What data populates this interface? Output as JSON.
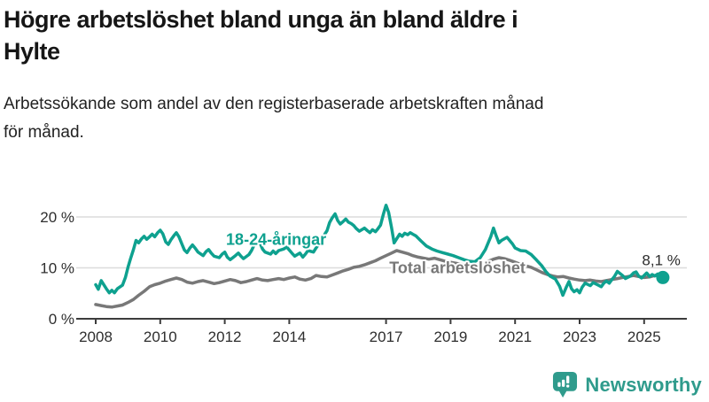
{
  "header": {
    "title": "Högre arbetslöshet bland unga än bland äldre i\nHylte",
    "subtitle": "Arbetssökande som andel av den registerbaserade arbetskraften månad\nför månad."
  },
  "chart_data": {
    "type": "line",
    "title": "Högre arbetslöshet bland unga än bland äldre i Hylte",
    "subtitle": "Arbetssökande som andel av den registerbaserade arbetskraften månad för månad.",
    "unit": "%",
    "grid": "horizontal",
    "ylim": [
      0,
      24
    ],
    "xlim": [
      2008,
      2025.7
    ],
    "axis_color": "#3c3c3c",
    "grid_color": "#dcdcdc",
    "y_ticks": [
      {
        "value": 0,
        "label": "0 %"
      },
      {
        "value": 10,
        "label": "10 %"
      },
      {
        "value": 20,
        "label": "20 %"
      }
    ],
    "x_ticks": [
      "2008",
      "2010",
      "2012",
      "2014",
      "2017",
      "2019",
      "2021",
      "2023",
      "2025"
    ],
    "annotation": {
      "label": "8,1 %",
      "x": 2025.58,
      "y": 8.1,
      "series": "18-24-åringar"
    },
    "series": [
      {
        "name": "18-24-åringar",
        "color": "#0ea18f",
        "label_at": [
          2012.04,
          14.5
        ],
        "points": [
          [
            2008.0,
            6.7
          ],
          [
            2008.08,
            5.8
          ],
          [
            2008.17,
            7.5
          ],
          [
            2008.33,
            5.9
          ],
          [
            2008.42,
            5.1
          ],
          [
            2008.5,
            5.6
          ],
          [
            2008.58,
            5.1
          ],
          [
            2008.67,
            5.9
          ],
          [
            2008.83,
            6.6
          ],
          [
            2008.92,
            8.1
          ],
          [
            2009.0,
            10.1
          ],
          [
            2009.08,
            11.8
          ],
          [
            2009.17,
            13.6
          ],
          [
            2009.25,
            15.4
          ],
          [
            2009.33,
            14.9
          ],
          [
            2009.42,
            15.7
          ],
          [
            2009.5,
            16.2
          ],
          [
            2009.58,
            15.6
          ],
          [
            2009.67,
            16.1
          ],
          [
            2009.75,
            16.6
          ],
          [
            2009.83,
            16.1
          ],
          [
            2009.92,
            16.9
          ],
          [
            2010.0,
            17.4
          ],
          [
            2010.08,
            16.7
          ],
          [
            2010.17,
            15.1
          ],
          [
            2010.25,
            14.6
          ],
          [
            2010.33,
            15.5
          ],
          [
            2010.42,
            16.3
          ],
          [
            2010.5,
            16.9
          ],
          [
            2010.58,
            16.1
          ],
          [
            2010.67,
            14.7
          ],
          [
            2010.75,
            13.5
          ],
          [
            2010.83,
            13.0
          ],
          [
            2010.92,
            13.9
          ],
          [
            2011.0,
            14.5
          ],
          [
            2011.08,
            13.9
          ],
          [
            2011.17,
            13.1
          ],
          [
            2011.33,
            12.4
          ],
          [
            2011.42,
            13.2
          ],
          [
            2011.5,
            13.6
          ],
          [
            2011.58,
            12.9
          ],
          [
            2011.67,
            12.3
          ],
          [
            2011.83,
            12.0
          ],
          [
            2011.92,
            12.7
          ],
          [
            2012.0,
            13.1
          ],
          [
            2012.08,
            12.1
          ],
          [
            2012.17,
            11.6
          ],
          [
            2012.33,
            12.4
          ],
          [
            2012.42,
            12.9
          ],
          [
            2012.5,
            12.3
          ],
          [
            2012.58,
            11.8
          ],
          [
            2012.75,
            12.6
          ],
          [
            2012.83,
            13.4
          ],
          [
            2012.92,
            14.6
          ],
          [
            2013.0,
            16.0
          ],
          [
            2013.08,
            15.1
          ],
          [
            2013.17,
            13.7
          ],
          [
            2013.25,
            13.1
          ],
          [
            2013.42,
            12.7
          ],
          [
            2013.5,
            13.3
          ],
          [
            2013.58,
            12.8
          ],
          [
            2013.67,
            13.4
          ],
          [
            2013.83,
            13.7
          ],
          [
            2013.92,
            14.1
          ],
          [
            2014.0,
            13.5
          ],
          [
            2014.08,
            12.9
          ],
          [
            2014.17,
            12.3
          ],
          [
            2014.33,
            12.9
          ],
          [
            2014.42,
            12.1
          ],
          [
            2014.5,
            12.7
          ],
          [
            2014.58,
            13.4
          ],
          [
            2014.75,
            13.1
          ],
          [
            2014.83,
            13.9
          ],
          [
            2014.92,
            14.7
          ],
          [
            2015.0,
            15.5
          ],
          [
            2015.08,
            16.4
          ],
          [
            2015.17,
            17.3
          ],
          [
            2015.25,
            18.9
          ],
          [
            2015.33,
            19.8
          ],
          [
            2015.42,
            20.6
          ],
          [
            2015.5,
            19.3
          ],
          [
            2015.58,
            18.6
          ],
          [
            2015.67,
            19.1
          ],
          [
            2015.75,
            19.6
          ],
          [
            2015.83,
            19.0
          ],
          [
            2015.92,
            18.7
          ],
          [
            2016.0,
            18.3
          ],
          [
            2016.08,
            17.7
          ],
          [
            2016.17,
            17.2
          ],
          [
            2016.33,
            17.8
          ],
          [
            2016.42,
            17.3
          ],
          [
            2016.5,
            16.9
          ],
          [
            2016.58,
            17.5
          ],
          [
            2016.67,
            17.1
          ],
          [
            2016.75,
            17.7
          ],
          [
            2016.83,
            18.4
          ],
          [
            2016.92,
            20.6
          ],
          [
            2017.0,
            22.3
          ],
          [
            2017.08,
            20.9
          ],
          [
            2017.17,
            17.9
          ],
          [
            2017.25,
            14.9
          ],
          [
            2017.33,
            15.7
          ],
          [
            2017.42,
            16.6
          ],
          [
            2017.5,
            16.2
          ],
          [
            2017.58,
            16.8
          ],
          [
            2017.67,
            16.5
          ],
          [
            2017.75,
            16.9
          ],
          [
            2017.83,
            16.6
          ],
          [
            2017.92,
            16.3
          ],
          [
            2018.0,
            15.8
          ],
          [
            2018.08,
            15.3
          ],
          [
            2018.25,
            14.3
          ],
          [
            2018.42,
            13.7
          ],
          [
            2018.58,
            13.3
          ],
          [
            2018.75,
            13.0
          ],
          [
            2018.92,
            12.7
          ],
          [
            2019.08,
            12.4
          ],
          [
            2019.25,
            12.0
          ],
          [
            2019.42,
            11.6
          ],
          [
            2019.58,
            11.3
          ],
          [
            2019.75,
            11.2
          ],
          [
            2019.92,
            12.0
          ],
          [
            2020.08,
            13.6
          ],
          [
            2020.25,
            16.2
          ],
          [
            2020.33,
            17.8
          ],
          [
            2020.42,
            16.2
          ],
          [
            2020.5,
            14.9
          ],
          [
            2020.58,
            15.4
          ],
          [
            2020.75,
            16.0
          ],
          [
            2020.92,
            14.7
          ],
          [
            2021.0,
            13.9
          ],
          [
            2021.17,
            13.4
          ],
          [
            2021.33,
            13.3
          ],
          [
            2021.5,
            12.6
          ],
          [
            2021.67,
            11.5
          ],
          [
            2021.83,
            10.4
          ],
          [
            2021.95,
            9.3
          ],
          [
            2022.08,
            8.4
          ],
          [
            2022.25,
            7.8
          ],
          [
            2022.38,
            6.4
          ],
          [
            2022.48,
            4.6
          ],
          [
            2022.58,
            6.1
          ],
          [
            2022.67,
            7.3
          ],
          [
            2022.75,
            5.9
          ],
          [
            2022.83,
            5.3
          ],
          [
            2022.92,
            5.7
          ],
          [
            2023.0,
            5.1
          ],
          [
            2023.08,
            6.2
          ],
          [
            2023.17,
            7.0
          ],
          [
            2023.33,
            6.5
          ],
          [
            2023.42,
            7.1
          ],
          [
            2023.58,
            6.6
          ],
          [
            2023.67,
            6.3
          ],
          [
            2023.75,
            7.0
          ],
          [
            2023.83,
            7.4
          ],
          [
            2023.92,
            7.0
          ],
          [
            2024.0,
            7.7
          ],
          [
            2024.08,
            8.3
          ],
          [
            2024.17,
            9.3
          ],
          [
            2024.33,
            8.5
          ],
          [
            2024.42,
            7.9
          ],
          [
            2024.58,
            8.4
          ],
          [
            2024.67,
            9.0
          ],
          [
            2024.75,
            9.2
          ],
          [
            2024.83,
            8.4
          ],
          [
            2024.92,
            8.0
          ],
          [
            2025.0,
            8.5
          ],
          [
            2025.08,
            9.0
          ],
          [
            2025.17,
            8.3
          ],
          [
            2025.25,
            8.7
          ],
          [
            2025.33,
            8.4
          ],
          [
            2025.42,
            8.8
          ],
          [
            2025.5,
            8.4
          ],
          [
            2025.58,
            8.1
          ]
        ]
      },
      {
        "name": "Total arbetslöshet",
        "color": "#787878",
        "label_at": [
          2017.1,
          9.0
        ],
        "points": [
          [
            2008.0,
            2.8
          ],
          [
            2008.17,
            2.6
          ],
          [
            2008.33,
            2.4
          ],
          [
            2008.5,
            2.3
          ],
          [
            2008.67,
            2.5
          ],
          [
            2008.83,
            2.7
          ],
          [
            2009.0,
            3.2
          ],
          [
            2009.17,
            3.8
          ],
          [
            2009.33,
            4.6
          ],
          [
            2009.5,
            5.4
          ],
          [
            2009.67,
            6.3
          ],
          [
            2009.83,
            6.7
          ],
          [
            2010.0,
            7.0
          ],
          [
            2010.17,
            7.4
          ],
          [
            2010.33,
            7.7
          ],
          [
            2010.5,
            8.0
          ],
          [
            2010.67,
            7.7
          ],
          [
            2010.83,
            7.2
          ],
          [
            2011.0,
            7.0
          ],
          [
            2011.17,
            7.3
          ],
          [
            2011.33,
            7.5
          ],
          [
            2011.5,
            7.2
          ],
          [
            2011.67,
            6.9
          ],
          [
            2011.83,
            7.1
          ],
          [
            2012.0,
            7.4
          ],
          [
            2012.17,
            7.7
          ],
          [
            2012.33,
            7.5
          ],
          [
            2012.5,
            7.1
          ],
          [
            2012.67,
            7.3
          ],
          [
            2012.83,
            7.6
          ],
          [
            2013.0,
            7.9
          ],
          [
            2013.17,
            7.6
          ],
          [
            2013.33,
            7.5
          ],
          [
            2013.5,
            7.7
          ],
          [
            2013.67,
            7.9
          ],
          [
            2013.83,
            7.7
          ],
          [
            2014.0,
            8.0
          ],
          [
            2014.17,
            8.2
          ],
          [
            2014.33,
            7.8
          ],
          [
            2014.5,
            7.6
          ],
          [
            2014.67,
            7.9
          ],
          [
            2014.83,
            8.5
          ],
          [
            2015.0,
            8.3
          ],
          [
            2015.17,
            8.2
          ],
          [
            2015.33,
            8.6
          ],
          [
            2015.5,
            9.0
          ],
          [
            2015.67,
            9.4
          ],
          [
            2015.83,
            9.7
          ],
          [
            2016.0,
            10.1
          ],
          [
            2016.17,
            10.3
          ],
          [
            2016.33,
            10.6
          ],
          [
            2016.5,
            11.0
          ],
          [
            2016.67,
            11.4
          ],
          [
            2016.83,
            11.9
          ],
          [
            2017.0,
            12.4
          ],
          [
            2017.17,
            12.9
          ],
          [
            2017.33,
            13.4
          ],
          [
            2017.5,
            13.1
          ],
          [
            2017.67,
            12.8
          ],
          [
            2017.83,
            12.4
          ],
          [
            2018.0,
            12.1
          ],
          [
            2018.17,
            11.9
          ],
          [
            2018.33,
            11.7
          ],
          [
            2018.5,
            11.9
          ],
          [
            2018.67,
            11.6
          ],
          [
            2018.83,
            11.3
          ],
          [
            2019.0,
            11.1
          ],
          [
            2019.17,
            10.9
          ],
          [
            2019.33,
            10.7
          ],
          [
            2019.5,
            10.5
          ],
          [
            2019.67,
            10.3
          ],
          [
            2019.83,
            10.5
          ],
          [
            2020.0,
            10.9
          ],
          [
            2020.17,
            11.3
          ],
          [
            2020.33,
            11.7
          ],
          [
            2020.5,
            12.0
          ],
          [
            2020.67,
            11.8
          ],
          [
            2020.83,
            11.5
          ],
          [
            2021.0,
            11.1
          ],
          [
            2021.17,
            10.7
          ],
          [
            2021.33,
            10.4
          ],
          [
            2021.5,
            10.1
          ],
          [
            2021.67,
            9.6
          ],
          [
            2021.83,
            9.1
          ],
          [
            2022.0,
            8.7
          ],
          [
            2022.17,
            8.4
          ],
          [
            2022.33,
            8.2
          ],
          [
            2022.5,
            8.3
          ],
          [
            2022.67,
            8.0
          ],
          [
            2022.83,
            7.8
          ],
          [
            2023.0,
            7.6
          ],
          [
            2023.17,
            7.5
          ],
          [
            2023.33,
            7.6
          ],
          [
            2023.5,
            7.4
          ],
          [
            2023.67,
            7.3
          ],
          [
            2023.83,
            7.5
          ],
          [
            2024.0,
            7.7
          ],
          [
            2024.17,
            7.9
          ],
          [
            2024.33,
            8.1
          ],
          [
            2024.5,
            8.3
          ],
          [
            2024.67,
            8.5
          ],
          [
            2024.83,
            8.3
          ],
          [
            2025.0,
            8.1
          ],
          [
            2025.17,
            8.2
          ],
          [
            2025.33,
            8.5
          ],
          [
            2025.5,
            8.4
          ],
          [
            2025.67,
            8.3
          ]
        ]
      }
    ]
  },
  "footer": {
    "brand": "Newsworthy",
    "brand_color": "#2f9b8c",
    "icon": "bar-chart-speech-bubble-icon"
  }
}
